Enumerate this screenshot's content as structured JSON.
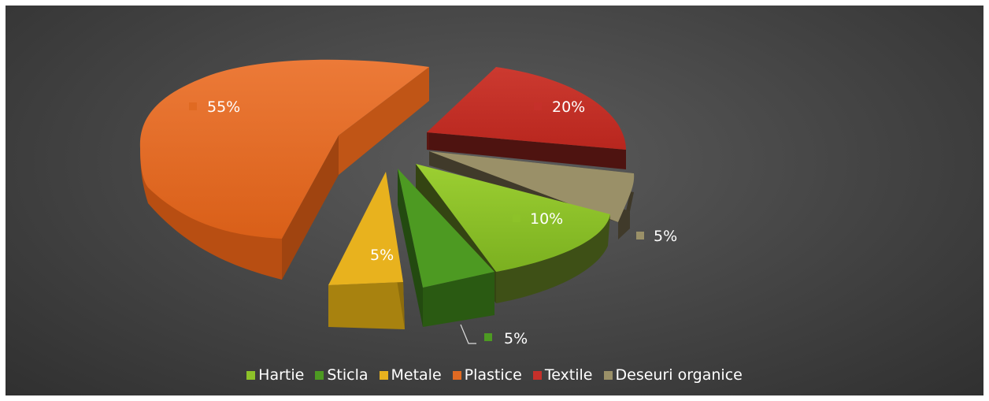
{
  "chart_data": {
    "type": "pie",
    "categories": [
      "Hartie",
      "Sticla",
      "Metale",
      "Plastice",
      "Textile",
      "Deseuri organice"
    ],
    "values": [
      10,
      5,
      5,
      55,
      20,
      5
    ],
    "labels": [
      "10%",
      "5%",
      "5%",
      "55%",
      "20%",
      "5%"
    ],
    "colors": [
      "#8dc229",
      "#4d9a22",
      "#e8b21e",
      "#e06a22",
      "#c5302a",
      "#9a9068"
    ],
    "legend_position": "bottom",
    "exploded": true,
    "style": "3d"
  }
}
